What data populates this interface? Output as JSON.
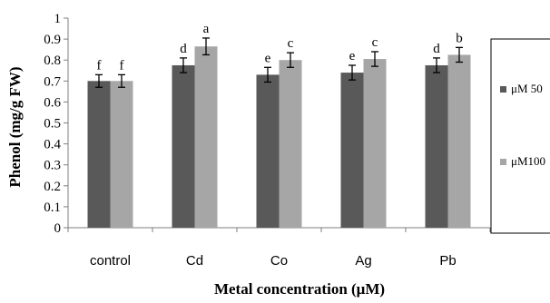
{
  "chart_data": {
    "type": "bar",
    "xlabel": "Metal concentration (μM)",
    "ylabel": "Phenol (mg/g FW)",
    "ylim": [
      0,
      1
    ],
    "yticks": [
      "0",
      "0.1",
      "0.2",
      "0.3",
      "0.4",
      "0.5",
      "0.6",
      "0.7",
      "0.8",
      "0.9",
      "1"
    ],
    "categories": [
      "control",
      "Cd",
      "Co",
      "Ag",
      "Pb"
    ],
    "series": [
      {
        "name": "μM 50",
        "color": "#595959",
        "values": [
          0.7,
          0.775,
          0.73,
          0.74,
          0.775
        ],
        "errors": [
          0.03,
          0.035,
          0.035,
          0.035,
          0.035
        ],
        "letters": [
          "f",
          "d",
          "e",
          "e",
          "d"
        ]
      },
      {
        "name": "μM100",
        "color": "#a6a6a6",
        "values": [
          0.7,
          0.865,
          0.8,
          0.805,
          0.825
        ],
        "errors": [
          0.03,
          0.04,
          0.035,
          0.035,
          0.035
        ],
        "letters": [
          "f",
          "a",
          "c",
          "c",
          "b"
        ]
      }
    ],
    "grid": false,
    "legend_position": "right"
  }
}
